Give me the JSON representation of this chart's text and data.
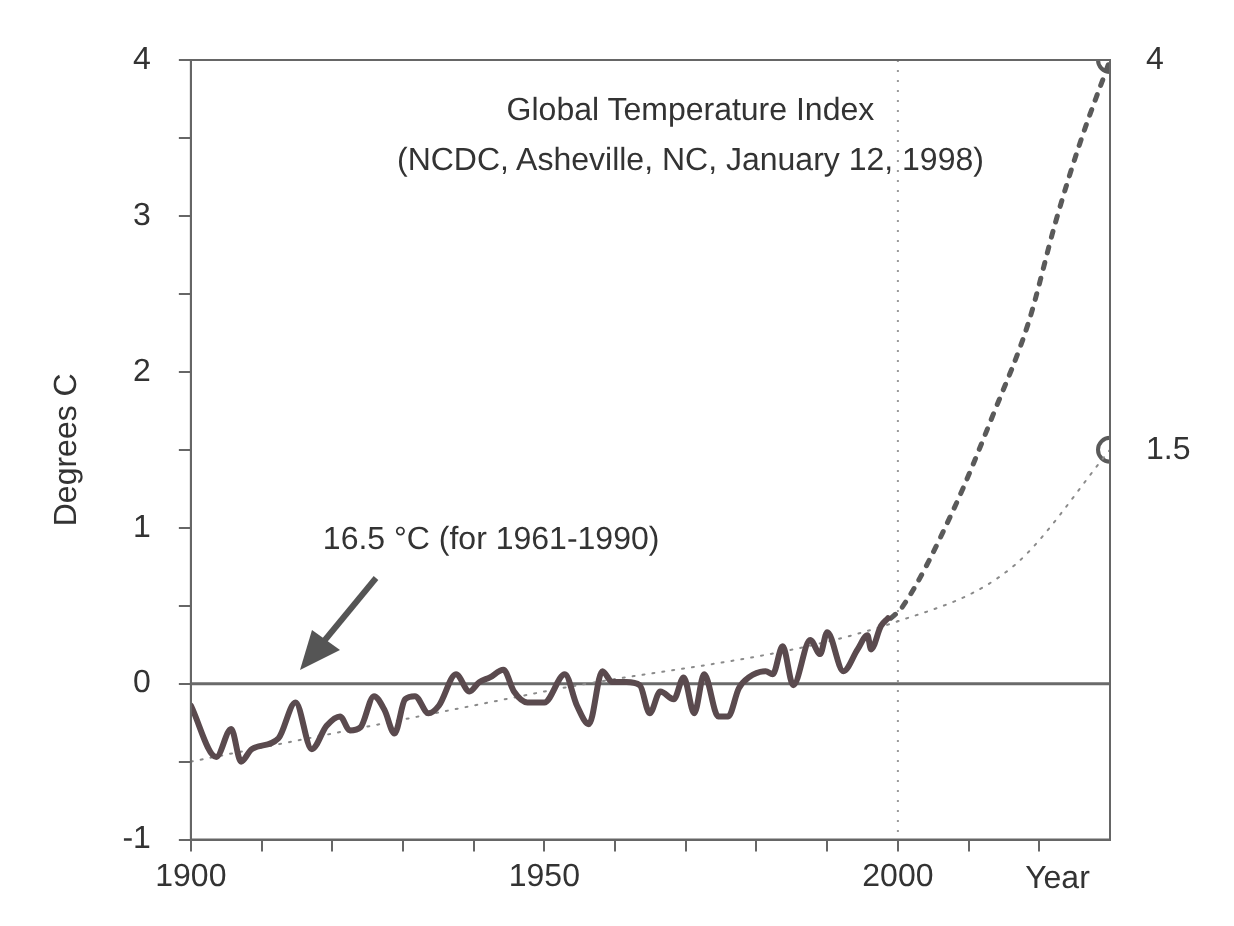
{
  "chart_data": {
    "type": "line",
    "title": "Global Temperature Index",
    "subtitle": "(NCDC, Asheville, NC, January 12, 1998)",
    "xlabel": "Year",
    "ylabel": "Degrees C",
    "xlim": [
      1900,
      2030
    ],
    "ylim": [
      -1,
      4
    ],
    "xticks": [
      1900,
      {
        "value": 1910,
        "label": null
      },
      {
        "value": 1920,
        "label": null
      },
      {
        "value": 1930,
        "label": null
      },
      {
        "value": 1940,
        "label": null
      },
      1950,
      {
        "value": 1960,
        "label": null
      },
      {
        "value": 1970,
        "label": null
      },
      {
        "value": 1980,
        "label": null
      },
      {
        "value": 1990,
        "label": null
      },
      2000,
      {
        "value": 2010,
        "label": null
      },
      {
        "value": 2020,
        "label": null
      }
    ],
    "yticks": [
      -1,
      {
        "value": -0.5,
        "label": null
      },
      0,
      {
        "value": 0.5,
        "label": null
      },
      1,
      {
        "value": 1.5,
        "label": null
      },
      2,
      {
        "value": 2.5,
        "label": null
      },
      3,
      {
        "value": 3.5,
        "label": null
      },
      4
    ],
    "grid": false,
    "legend": false,
    "annotations": [
      "16.5 °C (for 1961-1990)"
    ],
    "ref_lines": [
      {
        "axis": "y",
        "value": 0,
        "color": "#6a6a6a",
        "line_style": "solid"
      },
      {
        "axis": "x",
        "value": 2000,
        "color": "#9a9a9a",
        "line_style": "dotted"
      }
    ],
    "series": [
      {
        "color": "#5a4a4e",
        "line_style": "solid",
        "marker": "none",
        "x": [
          1900,
          1903.6,
          1905.7,
          1907.1,
          1908.6,
          1912.4,
          1914.8,
          1917.1,
          1919.2,
          1921.1,
          1922.5,
          1924,
          1925.9,
          1927.4,
          1928.8,
          1930.3,
          1931.7,
          1933.6,
          1935.1,
          1937.5,
          1939.4,
          1940.8,
          1942.3,
          1944.2,
          1945.7,
          1947.6,
          1950,
          1952.9,
          1954.6,
          1956.3,
          1958.2,
          1959.6,
          1961.6,
          1963.5,
          1964.9,
          1966.4,
          1968.3,
          1969.7,
          1971.2,
          1972.6,
          1974.6,
          1976,
          1977.5,
          1978.9,
          1981.3,
          1982.3,
          1983.7,
          1985.2,
          1987.6,
          1989,
          1990,
          1992.3,
          1994.3,
          1995.7,
          1996.2,
          1997.6,
          1998.6
        ],
        "values": [
          -0.14,
          -0.47,
          -0.29,
          -0.5,
          -0.42,
          -0.35,
          -0.12,
          -0.42,
          -0.27,
          -0.21,
          -0.3,
          -0.28,
          -0.08,
          -0.17,
          -0.32,
          -0.1,
          -0.08,
          -0.19,
          -0.14,
          0.06,
          -0.05,
          0.01,
          0.04,
          0.09,
          -0.05,
          -0.12,
          -0.12,
          0.06,
          -0.14,
          -0.26,
          0.08,
          0.01,
          0.01,
          -0.01,
          -0.19,
          -0.05,
          -0.1,
          0.04,
          -0.19,
          0.06,
          -0.21,
          -0.21,
          -0.03,
          0.04,
          0.08,
          0.06,
          0.24,
          -0.01,
          0.28,
          0.19,
          0.33,
          0.08,
          0.22,
          0.31,
          0.22,
          0.37,
          0.42
        ]
      },
      {
        "color": "#5a5a5a",
        "line_style": "dashed",
        "marker": "none",
        "x": [
          1999,
          2000.6,
          2007.8,
          2013.6,
          2018.5,
          2022.3,
          2025.7,
          2030
        ],
        "values": [
          0.42,
          0.49,
          1.11,
          1.74,
          2.32,
          2.96,
          3.46,
          4
        ]
      },
      {
        "color": "#8a8a8a",
        "line_style": "dotted",
        "marker": "none",
        "x": [
          1900,
          1950,
          2000,
          2016.5,
          2030
        ],
        "values": [
          -0.5,
          -0.05,
          0.4,
          0.76,
          1.5
        ]
      },
      {
        "type": "scatter",
        "color": "#5a5a5a",
        "marker": "circle",
        "x": [
          2030,
          2030
        ],
        "values": [
          4,
          1.5
        ],
        "value_labels": [
          "4",
          "1.5"
        ]
      }
    ]
  }
}
